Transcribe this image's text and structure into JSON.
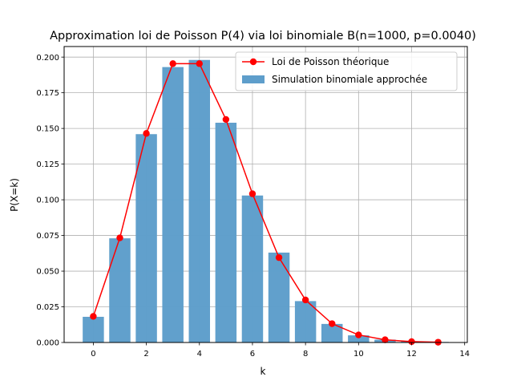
{
  "chart_data": {
    "type": "bar",
    "title": "Approximation loi de Poisson P(4) via loi binomiale B(n=1000, p=0.0040)",
    "xlabel": "k",
    "ylabel": "P(X=k)",
    "xlim": [
      -1.1,
      14.1
    ],
    "ylim": [
      0,
      0.2074
    ],
    "xticks": [
      0,
      2,
      4,
      6,
      8,
      10,
      12,
      14
    ],
    "yticks": [
      0.0,
      0.025,
      0.05,
      0.075,
      0.1,
      0.125,
      0.15,
      0.175,
      0.2
    ],
    "ytick_labels": [
      "0.000",
      "0.025",
      "0.050",
      "0.075",
      "0.100",
      "0.125",
      "0.150",
      "0.175",
      "0.200"
    ],
    "grid": true,
    "legend_position": "top-right",
    "series": [
      {
        "name": "Simulation binomiale approchée",
        "type": "bar",
        "color": "#5e9ecb",
        "x": [
          0,
          1,
          2,
          3,
          4,
          5,
          6,
          7,
          8,
          9,
          10,
          11,
          12,
          13
        ],
        "values": [
          0.018,
          0.073,
          0.146,
          0.193,
          0.198,
          0.154,
          0.103,
          0.063,
          0.029,
          0.013,
          0.005,
          0.002,
          0.0008,
          0.0004
        ]
      },
      {
        "name": "Loi de Poisson théorique",
        "type": "line",
        "color": "#ff0000",
        "x": [
          0,
          1,
          2,
          3,
          4,
          5,
          6,
          7,
          8,
          9,
          10,
          11,
          12,
          13
        ],
        "values": [
          0.0183,
          0.0733,
          0.1465,
          0.1954,
          0.1954,
          0.1563,
          0.1042,
          0.0595,
          0.0298,
          0.0132,
          0.0053,
          0.0019,
          0.0006,
          0.0002
        ]
      }
    ]
  }
}
